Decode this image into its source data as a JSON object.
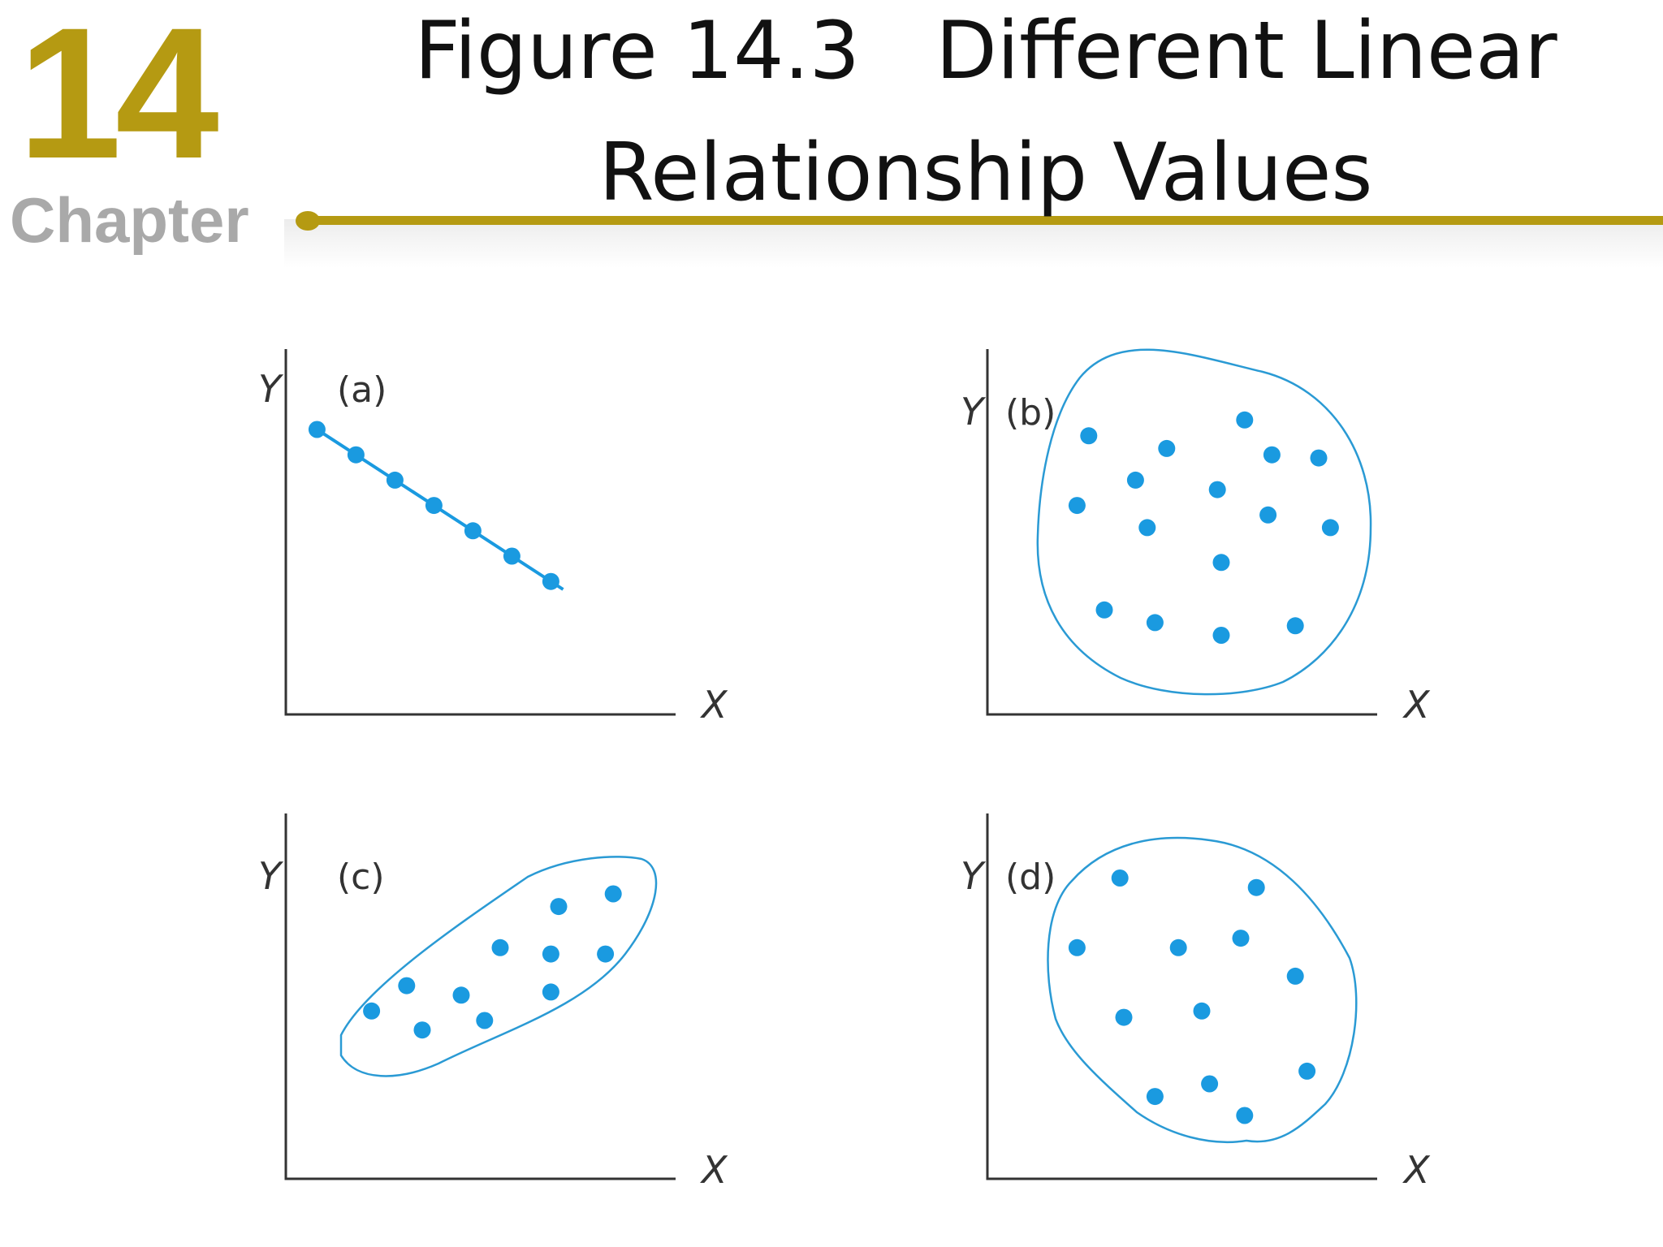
{
  "header": {
    "chapter_number": "14",
    "chapter_word": "Chapter",
    "title_line1": "Figure 14.3   Different Linear",
    "title_line2": "Relationship Values"
  },
  "colors": {
    "accent": "#b59a12",
    "points": "#1a9ae0",
    "outline": "#2a9ad4",
    "axis": "#333333"
  },
  "chart_data": [
    {
      "type": "scatter",
      "panel_label": "(a)",
      "xlabel": "X",
      "ylabel": "Y",
      "xlim": [
        0,
        10
      ],
      "ylim": [
        0,
        10
      ],
      "fit_line": true,
      "enclosure": false,
      "points": [
        {
          "x": 0.8,
          "y": 9.0
        },
        {
          "x": 1.8,
          "y": 8.2
        },
        {
          "x": 2.8,
          "y": 7.4
        },
        {
          "x": 3.8,
          "y": 6.6
        },
        {
          "x": 4.8,
          "y": 5.8
        },
        {
          "x": 5.8,
          "y": 5.0
        },
        {
          "x": 6.8,
          "y": 4.2
        }
      ]
    },
    {
      "type": "scatter",
      "panel_label": "(b)",
      "xlabel": "X",
      "ylabel": "Y",
      "xlim": [
        0,
        10
      ],
      "ylim": [
        0,
        10
      ],
      "fit_line": false,
      "enclosure": true,
      "points": [
        {
          "x": 2.6,
          "y": 8.8
        },
        {
          "x": 4.6,
          "y": 8.4
        },
        {
          "x": 6.6,
          "y": 9.3
        },
        {
          "x": 7.3,
          "y": 8.2
        },
        {
          "x": 8.5,
          "y": 8.1
        },
        {
          "x": 3.8,
          "y": 7.4
        },
        {
          "x": 5.9,
          "y": 7.1
        },
        {
          "x": 2.3,
          "y": 6.6
        },
        {
          "x": 4.1,
          "y": 5.9
        },
        {
          "x": 7.2,
          "y": 6.3
        },
        {
          "x": 8.8,
          "y": 5.9
        },
        {
          "x": 6.0,
          "y": 4.8
        },
        {
          "x": 3.0,
          "y": 3.3
        },
        {
          "x": 4.3,
          "y": 2.9
        },
        {
          "x": 6.0,
          "y": 2.5
        },
        {
          "x": 7.9,
          "y": 2.8
        }
      ]
    },
    {
      "type": "scatter",
      "panel_label": "(c)",
      "xlabel": "X",
      "ylabel": "Y",
      "xlim": [
        0,
        10
      ],
      "ylim": [
        0,
        10
      ],
      "fit_line": false,
      "enclosure": true,
      "points": [
        {
          "x": 2.2,
          "y": 5.3
        },
        {
          "x": 3.1,
          "y": 6.1
        },
        {
          "x": 3.5,
          "y": 4.7
        },
        {
          "x": 4.5,
          "y": 5.8
        },
        {
          "x": 5.1,
          "y": 5.0
        },
        {
          "x": 5.5,
          "y": 7.3
        },
        {
          "x": 6.8,
          "y": 7.1
        },
        {
          "x": 6.8,
          "y": 5.9
        },
        {
          "x": 7.0,
          "y": 8.6
        },
        {
          "x": 8.2,
          "y": 7.1
        },
        {
          "x": 8.4,
          "y": 9.0
        }
      ]
    },
    {
      "type": "scatter",
      "panel_label": "(d)",
      "xlabel": "X",
      "ylabel": "Y",
      "xlim": [
        0,
        10
      ],
      "ylim": [
        0,
        10
      ],
      "fit_line": false,
      "enclosure": true,
      "points": [
        {
          "x": 3.4,
          "y": 9.5
        },
        {
          "x": 6.9,
          "y": 9.2
        },
        {
          "x": 2.3,
          "y": 7.3
        },
        {
          "x": 4.9,
          "y": 7.3
        },
        {
          "x": 6.5,
          "y": 7.6
        },
        {
          "x": 7.9,
          "y": 6.4
        },
        {
          "x": 3.5,
          "y": 5.1
        },
        {
          "x": 5.5,
          "y": 5.3
        },
        {
          "x": 8.2,
          "y": 3.4
        },
        {
          "x": 5.7,
          "y": 3.0
        },
        {
          "x": 4.3,
          "y": 2.6
        },
        {
          "x": 6.6,
          "y": 2.0
        }
      ]
    }
  ]
}
